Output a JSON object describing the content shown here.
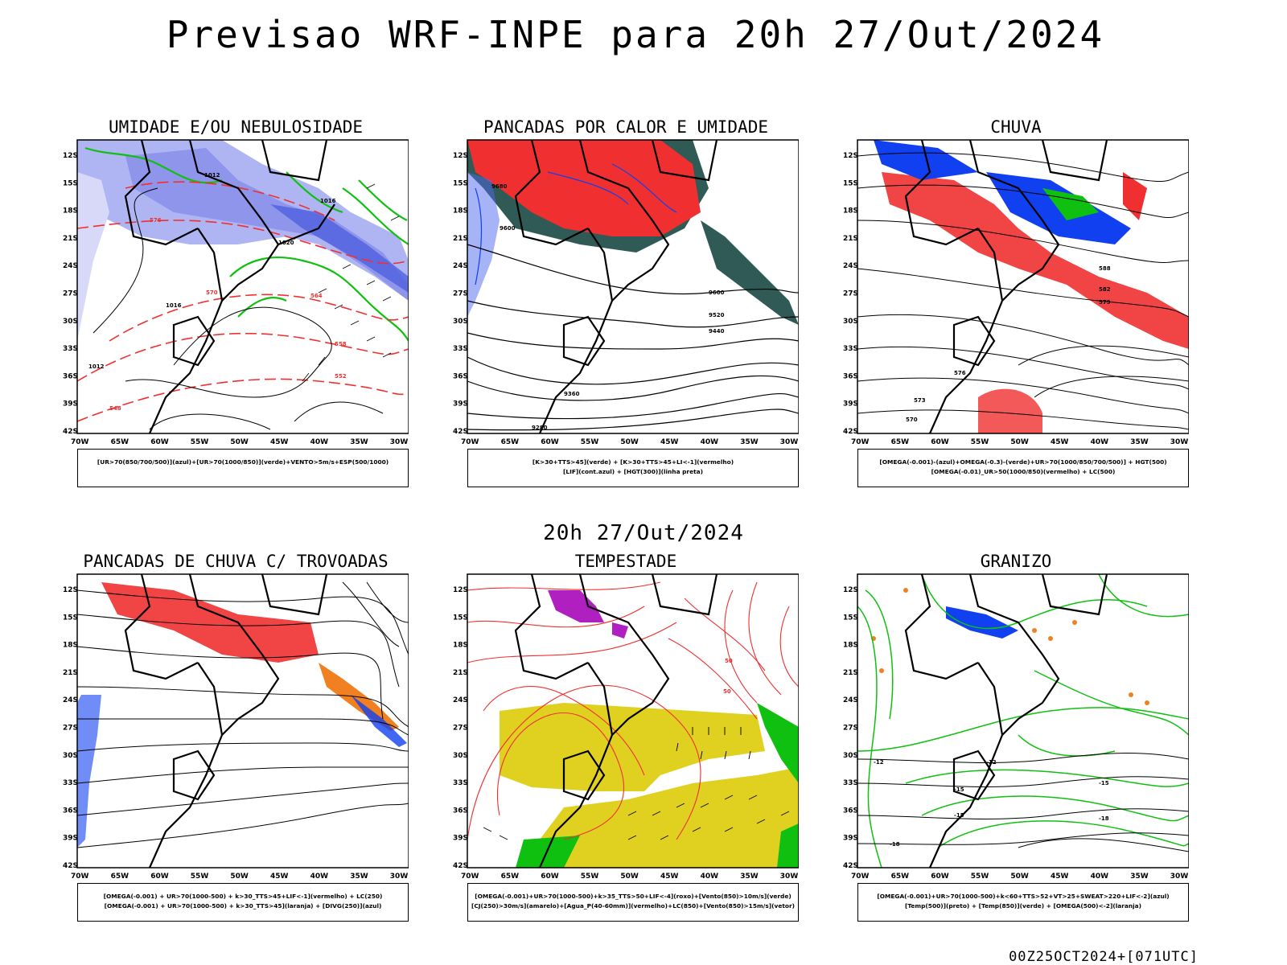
{
  "main_title": "Previsao WRF-INPE  para 20h 27/Out/2024",
  "mid_title": "20h 27/Out/2024",
  "footer": "00Z25OCT2024+[071UTC]",
  "axes": {
    "lat_ticks": [
      "12S",
      "15S",
      "18S",
      "21S",
      "24S",
      "27S",
      "30S",
      "33S",
      "36S",
      "39S",
      "42S"
    ],
    "lon_ticks": [
      "70W",
      "65W",
      "60W",
      "55W",
      "50W",
      "45W",
      "40W",
      "35W",
      "30W"
    ]
  },
  "panels": [
    {
      "title": "UMIDADE E/OU NEBULOSIDADE",
      "legend": [
        "[UR>70(850/700/500)](azul)+[UR>70(1000/850)](verde)+VENTO>5m/s+ESP(500/1000)"
      ],
      "contour_labels": [
        "1012",
        "1016",
        "1020",
        "1016",
        "1012",
        "576",
        "570",
        "564",
        "558",
        "552",
        "548"
      ]
    },
    {
      "title": "PANCADAS POR CALOR E UMIDADE",
      "legend": [
        "[K>30+TTS>45](verde) + [K>30+TTS>45+LI<-1](vermelho)",
        "[LIF](cont.azul) + [HGT(300)](linha preta)"
      ],
      "contour_labels": [
        "9680",
        "9600",
        "9520",
        "9440",
        "9360",
        "9280"
      ]
    },
    {
      "title": "CHUVA",
      "legend": [
        "[OMEGA(-0.001)-(azul)+OMEGA(-0.3)-(verde)+UR>70(1000/850/700/500)] + HGT(500)",
        "[OMEGA(-0.01)_UR>50(1000/850)(vermelho) + LC(500)"
      ],
      "contour_labels": [
        "588",
        "582",
        "579",
        "576",
        "573",
        "570"
      ]
    },
    {
      "title": "PANCADAS DE CHUVA C/ TROVOADAS",
      "legend": [
        "[OMEGA(-0.001) + UR>70(1000-500) + k>30_TTS>45+LIF<-1](vermelho) + LC(250)",
        "[OMEGA(-0.001) + UR>70(1000-500) + k>30_TTS>45](laranja) + [DIVG(250)](azul)"
      ],
      "contour_labels": []
    },
    {
      "title": "TEMPESTADE",
      "legend": [
        "[OMEGA(-0.001)+UR>70(1000-500)+k>35_TTS>50+LIF<-4](roxo)+[Vento(850)>10m/s](verde)",
        "[CJ(250)>30m/s](amarelo)+[Agua_P(40-60mm)](vermelho)+LC(850)+[Vento(850)>15m/s](vetor)"
      ],
      "contour_labels": [
        "50",
        "50"
      ]
    },
    {
      "title": "GRANIZO",
      "legend": [
        "[OMEGA(-0.001)+UR>70(1000-500)+k<60+TTS>52+VT>25+SWEAT>220+LIF<-2](azul)",
        "[Temp(500)](preto) + [Temp(850)](verde) + [OMEGA(500)<-2](laranja)"
      ],
      "contour_labels": [
        "-12",
        "-12",
        "-15",
        "-15",
        "-15",
        "-18",
        "-18"
      ]
    }
  ],
  "colors": {
    "humid_blue": "#a0a8f0",
    "humid_dark": "#5060e0",
    "green": "#10c010",
    "red": "#f03030",
    "dark_teal": "#2f5a55",
    "yellow": "#e0d020",
    "purple": "#b020c0",
    "orange": "#f08020",
    "blue": "#1040f0",
    "black": "#000000"
  }
}
